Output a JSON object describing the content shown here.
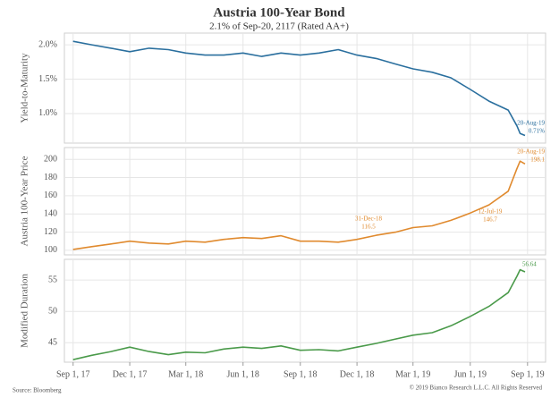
{
  "title": "Austria 100-Year Bond",
  "subtitle": "2.1% of Sep-20, 2117 (Rated AA+)",
  "source": "Source: Bloomberg",
  "copyright": "© 2019 Bianco Research L.L.C. All Rights Reserved",
  "chart_data": [
    {
      "type": "line",
      "ylabel": "Yield-to-Maturity",
      "color": "#2a6f9e",
      "x": [
        "2017-09-01",
        "2017-10-01",
        "2017-11-01",
        "2017-12-01",
        "2018-01-01",
        "2018-02-01",
        "2018-03-01",
        "2018-04-01",
        "2018-05-01",
        "2018-06-01",
        "2018-07-01",
        "2018-08-01",
        "2018-09-01",
        "2018-10-01",
        "2018-11-01",
        "2018-12-01",
        "2019-01-01",
        "2019-02-01",
        "2019-03-01",
        "2019-04-01",
        "2019-05-01",
        "2019-06-01",
        "2019-07-01",
        "2019-08-01",
        "2019-08-15",
        "2019-08-20",
        "2019-08-28"
      ],
      "values": [
        2.05,
        2.0,
        1.95,
        1.9,
        1.95,
        1.93,
        1.88,
        1.85,
        1.85,
        1.88,
        1.83,
        1.88,
        1.85,
        1.88,
        1.93,
        1.85,
        1.8,
        1.72,
        1.65,
        1.6,
        1.52,
        1.35,
        1.18,
        1.05,
        0.82,
        0.71,
        0.68
      ],
      "xlim": [
        "2017-08-18",
        "2019-09-30"
      ],
      "ylim": [
        0.57,
        2.17
      ],
      "yticks": [
        {
          "value": 1,
          "label": "1.0%"
        },
        {
          "value": 1.5,
          "label": "1.5%"
        },
        {
          "value": 2,
          "label": "2.0%"
        }
      ],
      "grid": true,
      "annotations": [
        [
          "20-Aug-19",
          "0.71%"
        ]
      ]
    },
    {
      "type": "line",
      "ylabel": "Austria 100-Year Price",
      "color": "#e08a2e",
      "x": [
        "2017-09-01",
        "2017-10-01",
        "2017-11-01",
        "2017-12-01",
        "2018-01-01",
        "2018-02-01",
        "2018-03-01",
        "2018-04-01",
        "2018-05-01",
        "2018-06-01",
        "2018-07-01",
        "2018-08-01",
        "2018-09-01",
        "2018-10-01",
        "2018-11-01",
        "2018-12-01",
        "2019-01-01",
        "2019-02-01",
        "2019-03-01",
        "2019-04-01",
        "2019-05-01",
        "2019-06-01",
        "2019-07-01",
        "2019-08-01",
        "2019-08-15",
        "2019-08-20",
        "2019-08-28"
      ],
      "values": [
        101,
        104,
        107,
        110,
        108,
        107,
        110,
        109,
        112,
        114,
        113,
        116,
        110,
        110,
        109,
        112,
        116.5,
        120,
        125,
        127,
        133,
        141,
        150,
        165,
        190,
        198.1,
        195
      ],
      "xlim": [
        "2017-08-18",
        "2019-09-30"
      ],
      "ylim": [
        95,
        213
      ],
      "yticks": [
        100,
        120,
        140,
        160,
        180,
        200
      ],
      "grid": true,
      "annotations": [
        [
          "31-Dec-18",
          "116.5"
        ],
        [
          "12-Jul-19",
          "146.7"
        ],
        [
          "20-Aug-19",
          "198.1"
        ]
      ]
    },
    {
      "type": "line",
      "ylabel": "Modified Duration",
      "color": "#4a9a4a",
      "x": [
        "2017-09-01",
        "2017-10-01",
        "2017-11-01",
        "2017-12-01",
        "2018-01-01",
        "2018-02-01",
        "2018-03-01",
        "2018-04-01",
        "2018-05-01",
        "2018-06-01",
        "2018-07-01",
        "2018-08-01",
        "2018-09-01",
        "2018-10-01",
        "2018-11-01",
        "2018-12-01",
        "2019-01-01",
        "2019-02-01",
        "2019-03-01",
        "2019-04-01",
        "2019-05-01",
        "2019-06-01",
        "2019-07-01",
        "2019-08-01",
        "2019-08-15",
        "2019-08-20",
        "2019-08-28"
      ],
      "values": [
        42.3,
        43,
        43.6,
        44.3,
        43.6,
        43.1,
        43.5,
        43.4,
        44,
        44.3,
        44.1,
        44.5,
        43.8,
        43.9,
        43.7,
        44.3,
        44.9,
        45.6,
        46.2,
        46.6,
        47.7,
        49.2,
        50.8,
        53,
        55.6,
        56.64,
        56.3
      ],
      "xlim": [
        "2017-08-18",
        "2019-09-30"
      ],
      "ylim": [
        41.9,
        58.3
      ],
      "yticks": [
        45,
        50,
        55
      ],
      "grid": true,
      "annotations": [
        [
          "56.64"
        ]
      ],
      "xticks": [
        {
          "value": "2017-09-01",
          "label": "Sep 1, 17"
        },
        {
          "value": "2017-12-01",
          "label": "Dec 1, 17"
        },
        {
          "value": "2018-03-01",
          "label": "Mar 1, 18"
        },
        {
          "value": "2018-06-01",
          "label": "Jun 1, 18"
        },
        {
          "value": "2018-09-01",
          "label": "Sep 1, 18"
        },
        {
          "value": "2018-12-01",
          "label": "Dec 1, 18"
        },
        {
          "value": "2019-03-01",
          "label": "Mar 1, 19"
        },
        {
          "value": "2019-06-01",
          "label": "Jun 1, 19"
        },
        {
          "value": "2019-09-01",
          "label": "Sep 1, 19"
        }
      ]
    }
  ]
}
